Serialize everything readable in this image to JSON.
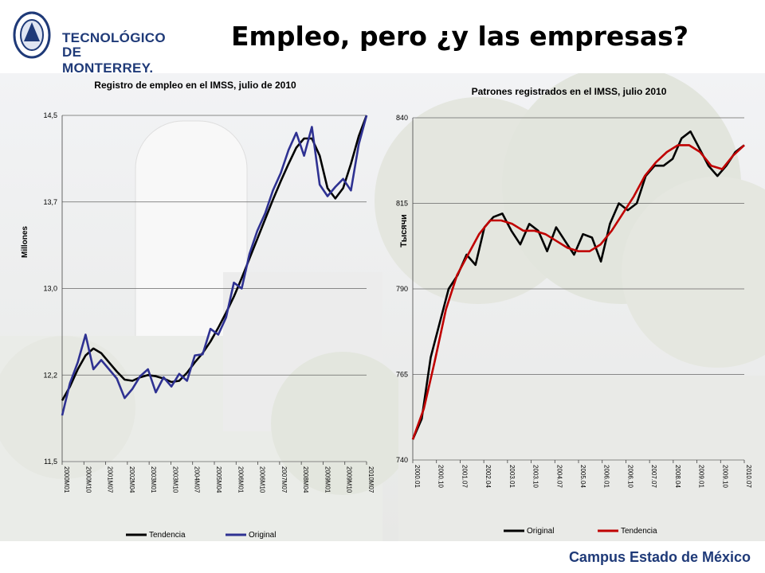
{
  "header": {
    "title": "Empleo, pero ¿y las empresas?",
    "logo_line1": "TECNOLÓGICO",
    "logo_line2": "DE MONTERREY."
  },
  "footer": {
    "campus": "Campus Estado de México"
  },
  "colors": {
    "brand_blue": "#1f3a78",
    "series_black": "#000000",
    "series_blue": "#2e3192",
    "series_red": "#c00000"
  },
  "chart_data": [
    {
      "type": "line",
      "title": "Registro de empleo en el IMSS, julio de 2010",
      "ylabel": "Millones",
      "ylim": [
        11.5,
        14.5
      ],
      "yticks": [
        "11,5",
        "12,2",
        "13,0",
        "13,7",
        "14,5"
      ],
      "xticks": [
        "2000M01",
        "2000M10",
        "2001M07",
        "2002M04",
        "2003M01",
        "2003M10",
        "2004M07",
        "2005M04",
        "2006M01",
        "2006M10",
        "2007M07",
        "2008M04",
        "2009M01",
        "2009M10",
        "2010M07"
      ],
      "legend": "bottom",
      "series": [
        {
          "name": "Tendencia",
          "color": "#000000",
          "values": [
            12.03,
            12.15,
            12.3,
            12.42,
            12.48,
            12.44,
            12.36,
            12.28,
            12.21,
            12.2,
            12.23,
            12.25,
            12.24,
            12.22,
            12.19,
            12.2,
            12.27,
            12.36,
            12.44,
            12.54,
            12.66,
            12.79,
            12.93,
            13.09,
            13.26,
            13.43,
            13.6,
            13.77,
            13.93,
            14.08,
            14.22,
            14.3,
            14.3,
            14.15,
            13.87,
            13.78,
            13.87,
            14.08,
            14.32,
            14.5
          ]
        },
        {
          "name": "Original",
          "color": "#2e3192",
          "values": [
            11.9,
            12.18,
            12.36,
            12.6,
            12.3,
            12.38,
            12.3,
            12.22,
            12.05,
            12.13,
            12.24,
            12.3,
            12.1,
            12.23,
            12.15,
            12.26,
            12.2,
            12.42,
            12.43,
            12.65,
            12.6,
            12.75,
            13.05,
            13.0,
            13.3,
            13.5,
            13.65,
            13.85,
            14.0,
            14.2,
            14.35,
            14.15,
            14.4,
            13.9,
            13.8,
            13.88,
            13.95,
            13.85,
            14.25,
            14.5
          ]
        }
      ]
    },
    {
      "type": "line",
      "title": "Patrones registrados en el IMSS, julio 2010",
      "ylabel": "Тысячи",
      "ylim": [
        740,
        840
      ],
      "yticks": [
        "740",
        "765",
        "790",
        "815",
        "840"
      ],
      "xticks": [
        "2000.01",
        "2000.10",
        "2001.07",
        "2002.04",
        "2003.01",
        "2003.10",
        "2004.07",
        "2005.04",
        "2006.01",
        "2006.10",
        "2007.07",
        "2008.04",
        "2009.01",
        "2009.10",
        "2010.07"
      ],
      "legend": "bottom",
      "series": [
        {
          "name": "Original",
          "color": "#000000",
          "values": [
            746,
            752,
            770,
            780,
            790,
            794,
            800,
            797,
            808,
            811,
            812,
            807,
            803,
            809,
            807,
            801,
            808,
            804,
            800,
            806,
            805,
            798,
            809,
            815,
            813,
            815,
            823,
            826,
            826,
            828,
            834,
            836,
            831,
            826,
            823,
            826,
            830,
            832
          ]
        },
        {
          "name": "Tendencia",
          "color": "#c00000",
          "values": [
            746,
            755,
            769,
            784,
            794,
            800,
            806,
            810,
            810,
            809,
            807,
            807,
            806,
            804,
            802,
            801,
            801,
            803,
            807,
            812,
            817,
            823,
            827,
            830,
            832,
            832,
            830,
            826,
            825,
            829,
            832
          ]
        }
      ]
    }
  ]
}
